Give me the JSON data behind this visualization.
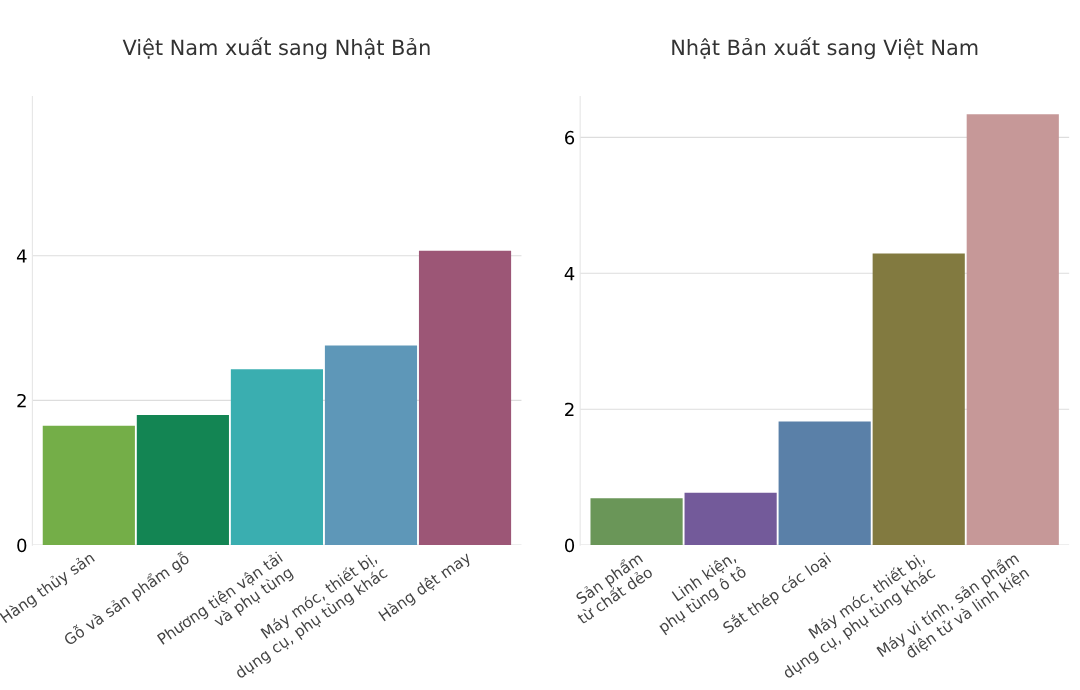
{
  "chart_data": [
    {
      "type": "bar",
      "title": "Việt Nam xuất sang Nhật Bản",
      "categories": [
        "Hàng thủy sản",
        "Gỗ và sản phẩm gỗ",
        "Phương tiện vận tải\nvà phụ tùng",
        "Máy móc, thiết bị,\ndụng cụ, phụ tùng khác",
        "Hàng dệt may"
      ],
      "values": [
        1.65,
        1.8,
        2.43,
        2.76,
        4.07
      ],
      "colors": [
        "#74ae48",
        "#138553",
        "#3aaeb0",
        "#5e97b8",
        "#9c5676"
      ],
      "ylim": [
        0,
        6.2
      ],
      "yticks": [
        0,
        2,
        4
      ],
      "grid": "y"
    },
    {
      "type": "bar",
      "title": "Nhật Bản xuất sang Việt Nam",
      "categories": [
        "Sản phẩm\ntừ chất dẻo",
        "Linh kiện,\nphụ tùng ô tô",
        "Sắt thép các loại",
        "Máy móc, thiết bị,\ndụng cụ, phụ tùng khác",
        "Máy vi tính, sản phẩm\nđiện tử và linh kiện"
      ],
      "values": [
        0.69,
        0.77,
        1.82,
        4.29,
        6.34
      ],
      "colors": [
        "#6a9658",
        "#735a9a",
        "#5a80a8",
        "#827a40",
        "#c69898"
      ],
      "ylim": [
        0,
        6.6
      ],
      "yticks": [
        0,
        2,
        4,
        6
      ],
      "grid": "y"
    }
  ]
}
